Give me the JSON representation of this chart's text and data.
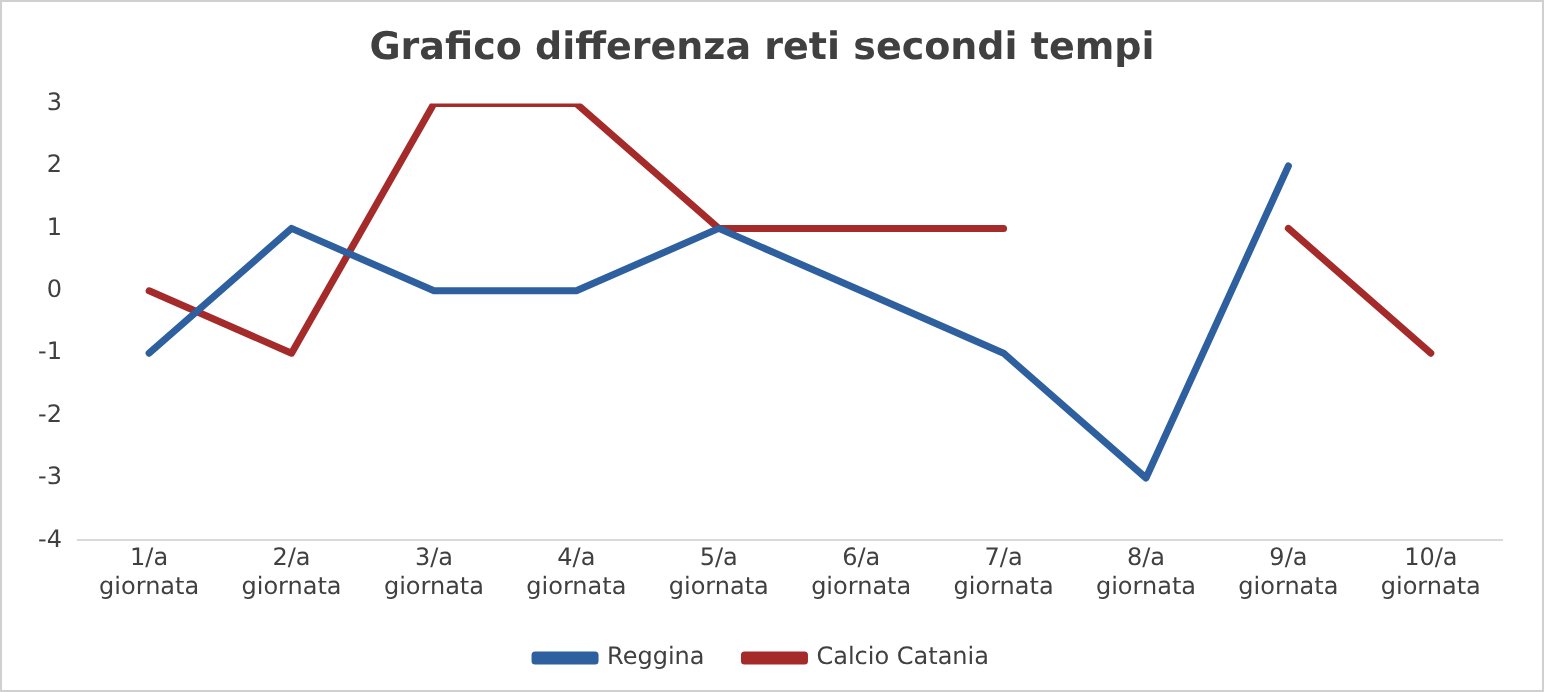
{
  "chart_data": {
    "type": "line",
    "title": "Grafico differenza reti secondi tempi",
    "categories": [
      "1/a giornata",
      "2/a giornata",
      "3/a giornata",
      "4/a giornata",
      "5/a giornata",
      "6/a giornata",
      "7/a giornata",
      "8/a giornata",
      "9/a giornata",
      "10/a giornata"
    ],
    "series": [
      {
        "name": "Reggina",
        "color": "#2e5f9e",
        "values": [
          -1,
          1,
          0,
          0,
          1,
          0,
          -1,
          -3,
          2,
          null
        ]
      },
      {
        "name": "Calcio Catania",
        "color": "#a52a2a",
        "values": [
          0,
          -1,
          3,
          3,
          1,
          1,
          1,
          null,
          1,
          -1
        ]
      }
    ],
    "ylim": [
      -4,
      3
    ],
    "yticks": [
      -4,
      -3,
      -2,
      -1,
      0,
      1,
      2,
      3
    ],
    "grid": false,
    "legend": "bottom",
    "marker": "none",
    "line_style": "solid"
  }
}
